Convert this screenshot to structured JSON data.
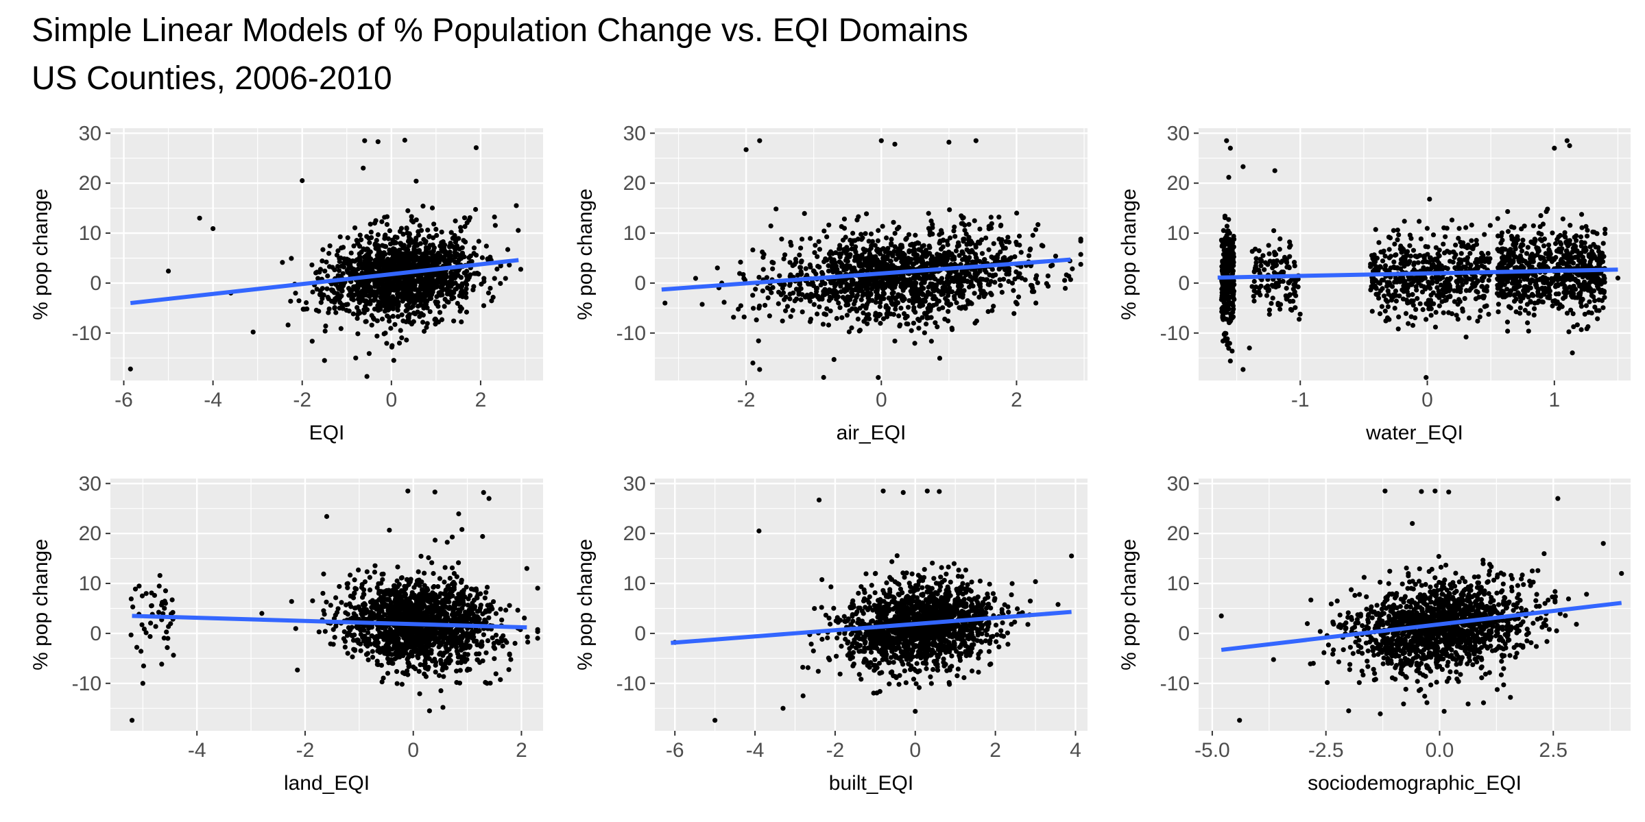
{
  "title": "Simple Linear Models of % Population Change vs. EQI Domains",
  "subtitle": "US Counties, 2006-2010",
  "colors": {
    "panel_bg": "#ebebeb",
    "grid": "#ffffff",
    "points": "#000000",
    "fit_line": "#3366ff",
    "tick_text": "#4d4d4d"
  },
  "chart_data": [
    {
      "type": "scatter",
      "xlabel": "EQI",
      "ylabel": "% pop change",
      "xlim": [
        -6.3,
        3.4
      ],
      "ylim": [
        -19.5,
        31.0
      ],
      "xticks": [
        -6,
        -4,
        -2,
        0,
        2
      ],
      "xtick_labels": [
        "-6",
        "-4",
        "-2",
        "0",
        "2"
      ],
      "yticks": [
        -10,
        0,
        10,
        20,
        30
      ],
      "ytick_labels": [
        "-10",
        "0",
        "10",
        "20",
        "30"
      ],
      "fit": {
        "x": [
          -5.85,
          2.85
        ],
        "y": [
          -4.0,
          4.6
        ]
      },
      "cloud": {
        "x_mean": 0.2,
        "x_sd": 0.85,
        "y_mean": 1.5,
        "y_sd": 4.0,
        "slope": 1.0,
        "n": 1500
      },
      "outliers": [
        [
          -5.85,
          -17.2
        ],
        [
          -4.0,
          10.9
        ],
        [
          -4.3,
          13.0
        ],
        [
          -5.0,
          2.4
        ],
        [
          -3.1,
          -9.8
        ],
        [
          -0.6,
          28.5
        ],
        [
          -0.3,
          28.3
        ],
        [
          0.3,
          28.6
        ],
        [
          1.9,
          27.1
        ],
        [
          -2.0,
          20.5
        ],
        [
          2.8,
          15.5
        ],
        [
          -1.5,
          -15.5
        ],
        [
          -0.8,
          -15.0
        ],
        [
          -3.6,
          -2.0
        ]
      ]
    },
    {
      "type": "scatter",
      "xlabel": "air_EQI",
      "ylabel": "% pop change",
      "xlim": [
        -3.35,
        3.05
      ],
      "ylim": [
        -19.5,
        31.0
      ],
      "xticks": [
        -2,
        0,
        2
      ],
      "xtick_labels": [
        "-2",
        "0",
        "2"
      ],
      "yticks": [
        -10,
        0,
        10,
        20,
        30
      ],
      "ytick_labels": [
        "-10",
        "0",
        "10",
        "20",
        "30"
      ],
      "fit": {
        "x": [
          -3.25,
          2.8
        ],
        "y": [
          -1.3,
          4.7
        ]
      },
      "cloud": {
        "x_mean": 0.3,
        "x_sd": 0.95,
        "y_mean": 1.5,
        "y_sd": 4.0,
        "slope": 0.8,
        "n": 1500
      },
      "outliers": [
        [
          -2.0,
          26.7
        ],
        [
          -1.8,
          28.5
        ],
        [
          0.0,
          28.5
        ],
        [
          0.2,
          27.8
        ],
        [
          1.0,
          28.2
        ],
        [
          1.4,
          28.5
        ],
        [
          -1.9,
          -16.0
        ],
        [
          -1.8,
          -17.3
        ],
        [
          -0.7,
          -15.3
        ],
        [
          0.2,
          -11.6
        ],
        [
          -3.2,
          -4.0
        ],
        [
          2.8,
          0.7
        ]
      ]
    },
    {
      "type": "scatter",
      "xlabel": "water_EQI",
      "ylabel": "% pop change",
      "xlim": [
        -1.8,
        1.6
      ],
      "ylim": [
        -19.5,
        31.0
      ],
      "xticks": [
        -1,
        0,
        1
      ],
      "xtick_labels": [
        "-1",
        "0",
        "1"
      ],
      "yticks": [
        -10,
        0,
        10,
        20,
        30
      ],
      "ytick_labels": [
        "-10",
        "0",
        "10",
        "20",
        "30"
      ],
      "fit": {
        "x": [
          -1.65,
          1.5
        ],
        "y": [
          1.1,
          2.7
        ]
      },
      "clusters": [
        {
          "x_min": -1.62,
          "x_max": -1.52,
          "y_mean": 1.0,
          "y_sd": 5.0,
          "n": 260
        },
        {
          "x_min": -1.38,
          "x_max": -1.0,
          "y_mean": 1.5,
          "y_sd": 3.5,
          "n": 130
        },
        {
          "x_min": -0.45,
          "x_max": 0.5,
          "y_mean": 1.5,
          "y_sd": 4.0,
          "n": 520
        },
        {
          "x_min": 0.55,
          "x_max": 1.4,
          "y_mean": 2.5,
          "y_sd": 4.0,
          "n": 720
        }
      ],
      "outliers": [
        [
          -1.58,
          28.5
        ],
        [
          -1.55,
          27.0
        ],
        [
          -1.45,
          23.3
        ],
        [
          -1.2,
          22.5
        ],
        [
          1.0,
          27.0
        ],
        [
          1.1,
          28.5
        ],
        [
          1.12,
          27.5
        ],
        [
          -1.45,
          -17.3
        ],
        [
          -1.4,
          -13.0
        ],
        [
          -1.55,
          -15.6
        ],
        [
          1.5,
          1.0
        ]
      ]
    },
    {
      "type": "scatter",
      "xlabel": "land_EQI",
      "ylabel": "% pop change",
      "xlim": [
        -5.6,
        2.4
      ],
      "ylim": [
        -19.5,
        31.0
      ],
      "xticks": [
        -4,
        -2,
        0,
        2
      ],
      "xtick_labels": [
        "-4",
        "-2",
        "0",
        "2"
      ],
      "yticks": [
        -10,
        0,
        10,
        20,
        30
      ],
      "ytick_labels": [
        "-10",
        "0",
        "10",
        "20",
        "30"
      ],
      "fit": {
        "x": [
          -5.2,
          2.1
        ],
        "y": [
          3.5,
          1.2
        ]
      },
      "clusters": [
        {
          "x_min": -5.25,
          "x_max": -4.4,
          "y_mean": 4.0,
          "y_sd": 4.0,
          "n": 45
        }
      ],
      "cloud": {
        "x_mean": 0.15,
        "x_sd": 0.7,
        "y_mean": 2.0,
        "y_sd": 4.0,
        "slope": -0.3,
        "n": 1550
      },
      "outliers": [
        [
          -5.2,
          -17.4
        ],
        [
          -5.0,
          -10.0
        ],
        [
          -0.1,
          28.5
        ],
        [
          0.4,
          28.3
        ],
        [
          1.3,
          28.2
        ],
        [
          1.4,
          27.0
        ],
        [
          0.9,
          20.8
        ],
        [
          -1.6,
          23.4
        ],
        [
          2.1,
          13.0
        ],
        [
          0.3,
          -15.5
        ],
        [
          -2.8,
          4.0
        ]
      ]
    },
    {
      "type": "scatter",
      "xlabel": "built_EQI",
      "ylabel": "% pop change",
      "xlim": [
        -6.5,
        4.3
      ],
      "ylim": [
        -19.5,
        31.0
      ],
      "xticks": [
        -6,
        -4,
        -2,
        0,
        2,
        4
      ],
      "xtick_labels": [
        "-6",
        "-4",
        "-2",
        "0",
        "2",
        "4"
      ],
      "yticks": [
        -10,
        0,
        10,
        20,
        30
      ],
      "ytick_labels": [
        "-10",
        "0",
        "10",
        "20",
        "30"
      ],
      "fit": {
        "x": [
          -6.1,
          3.9
        ],
        "y": [
          -1.9,
          4.3
        ]
      },
      "cloud": {
        "x_mean": 0.1,
        "x_sd": 0.9,
        "y_mean": 1.5,
        "y_sd": 4.0,
        "slope": 0.7,
        "n": 1550
      },
      "outliers": [
        [
          -6.0,
          -1.8
        ],
        [
          -5.0,
          -17.4
        ],
        [
          -3.3,
          -15.0
        ],
        [
          -2.8,
          -12.5
        ],
        [
          -2.4,
          26.7
        ],
        [
          -0.8,
          28.5
        ],
        [
          -0.3,
          28.2
        ],
        [
          0.3,
          28.5
        ],
        [
          0.6,
          28.4
        ],
        [
          3.9,
          15.5
        ],
        [
          -3.9,
          20.5
        ],
        [
          0.0,
          -15.6
        ]
      ]
    },
    {
      "type": "scatter",
      "xlabel": "sociodemographic_EQI",
      "ylabel": "% pop change",
      "xlim": [
        -5.3,
        4.2
      ],
      "ylim": [
        -19.5,
        31.0
      ],
      "xticks": [
        -5,
        -2.5,
        0,
        2.5
      ],
      "xtick_labels": [
        "-5.0",
        "-2.5",
        "0.0",
        "2.5"
      ],
      "yticks": [
        -10,
        0,
        10,
        20,
        30
      ],
      "ytick_labels": [
        "-10",
        "0",
        "10",
        "20",
        "30"
      ],
      "fit": {
        "x": [
          -4.8,
          4.0
        ],
        "y": [
          -3.3,
          6.1
        ]
      },
      "cloud": {
        "x_mean": 0.0,
        "x_sd": 1.0,
        "y_mean": 1.5,
        "y_sd": 4.0,
        "slope": 1.0,
        "n": 1550
      },
      "outliers": [
        [
          -4.4,
          -17.4
        ],
        [
          -4.8,
          3.5
        ],
        [
          -1.2,
          28.5
        ],
        [
          -0.4,
          28.4
        ],
        [
          -0.1,
          28.5
        ],
        [
          0.2,
          28.3
        ],
        [
          2.6,
          27.0
        ],
        [
          4.0,
          12.0
        ],
        [
          3.6,
          18.0
        ],
        [
          -2.0,
          -15.5
        ],
        [
          0.1,
          -15.6
        ],
        [
          -0.6,
          22.0
        ]
      ]
    }
  ]
}
